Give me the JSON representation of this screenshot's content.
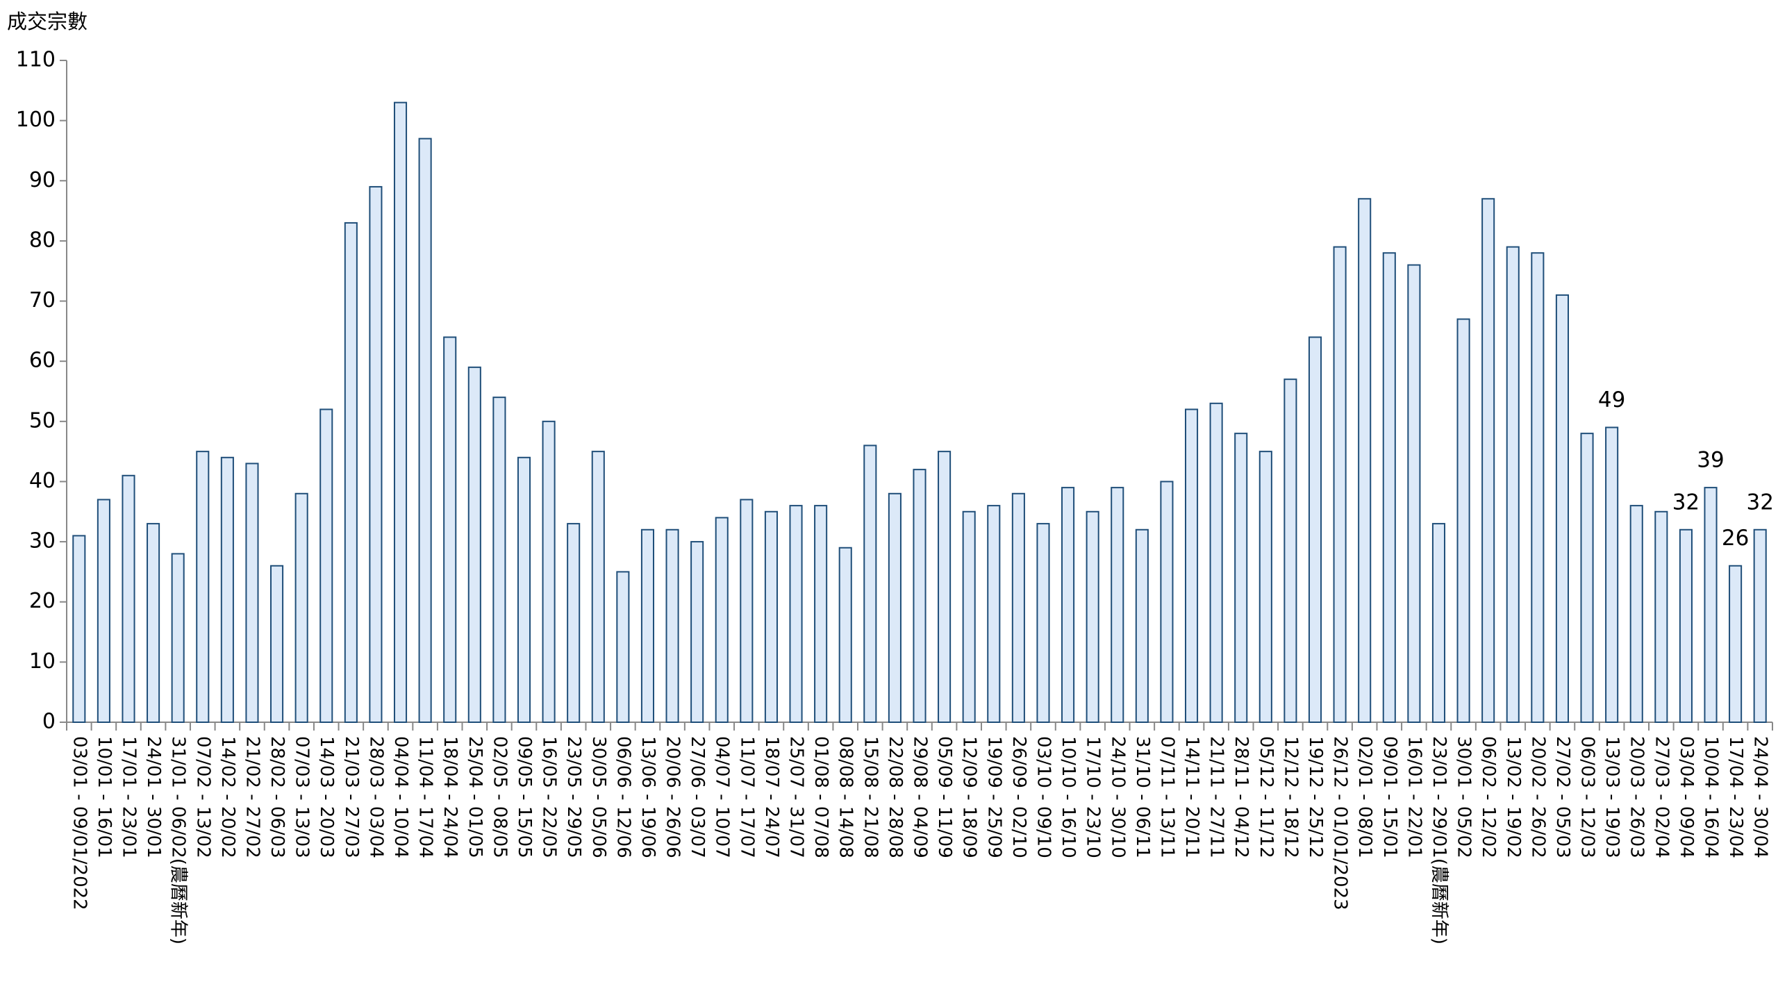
{
  "chart_data": {
    "type": "bar",
    "title": "成交宗數",
    "categories": [
      "03/01 - 09/01/2022",
      "10/01 - 16/01",
      "17/01 - 23/01",
      "24/01 - 30/01",
      "31/01 - 06/02(農曆新年)",
      "07/02 - 13/02",
      "14/02 - 20/02",
      "21/02 - 27/02",
      "28/02 - 06/03",
      "07/03 - 13/03",
      "14/03 - 20/03",
      "21/03 - 27/03",
      "28/03 - 03/04",
      "04/04 - 10/04",
      "11/04 - 17/04",
      "18/04 - 24/04",
      "25/04 - 01/05",
      "02/05 - 08/05",
      "09/05 - 15/05",
      "16/05 - 22/05",
      "23/05 - 29/05",
      "30/05 - 05/06",
      "06/06 - 12/06",
      "13/06 - 19/06",
      "20/06 - 26/06",
      "27/06 - 03/07",
      "04/07 - 10/07",
      "11/07 - 17/07",
      "18/07 - 24/07",
      "25/07 - 31/07",
      "01/08 - 07/08",
      "08/08 - 14/08",
      "15/08 - 21/08",
      "22/08 - 28/08",
      "29/08 - 04/09",
      "05/09 - 11/09",
      "12/09 - 18/09",
      "19/09 - 25/09",
      "26/09 - 02/10",
      "03/10 - 09/10",
      "10/10 - 16/10",
      "17/10 - 23/10",
      "24/10 - 30/10",
      "31/10 - 06/11",
      "07/11 - 13/11",
      "14/11 - 20/11",
      "21/11 - 27/11",
      "28/11 - 04/12",
      "05/12 - 11/12",
      "12/12 - 18/12",
      "19/12 - 25/12",
      "26/12 - 01/01/2023",
      "02/01 - 08/01",
      "09/01 - 15/01",
      "16/01 - 22/01",
      "23/01 - 29/01(農曆新年)",
      "30/01 - 05/02",
      "06/02 - 12/02",
      "13/02 - 19/02",
      "20/02 - 26/02",
      "27/02 - 05/03",
      "06/03 - 12/03",
      "13/03 - 19/03",
      "20/03 - 26/03",
      "27/03 - 02/04",
      "03/04 - 09/04",
      "10/04 - 16/04",
      "17/04 - 23/04",
      "24/04 - 30/04"
    ],
    "values": [
      31,
      37,
      41,
      33,
      28,
      45,
      44,
      43,
      26,
      38,
      52,
      83,
      89,
      103,
      97,
      64,
      59,
      54,
      44,
      50,
      33,
      45,
      25,
      32,
      32,
      30,
      34,
      37,
      35,
      36,
      36,
      29,
      46,
      38,
      42,
      45,
      35,
      36,
      38,
      33,
      39,
      35,
      39,
      32,
      40,
      52,
      53,
      48,
      45,
      57,
      64,
      79,
      87,
      78,
      76,
      33,
      67,
      87,
      79,
      78,
      71,
      48,
      49,
      36,
      35,
      32,
      39,
      26,
      32
    ],
    "value_labels": [
      null,
      null,
      null,
      null,
      null,
      null,
      null,
      null,
      null,
      null,
      null,
      null,
      null,
      null,
      null,
      null,
      null,
      null,
      null,
      null,
      null,
      null,
      null,
      null,
      null,
      null,
      null,
      null,
      null,
      null,
      null,
      null,
      null,
      null,
      null,
      null,
      null,
      null,
      null,
      null,
      null,
      null,
      null,
      null,
      null,
      null,
      null,
      null,
      null,
      null,
      null,
      null,
      null,
      null,
      null,
      null,
      null,
      null,
      null,
      null,
      null,
      null,
      "49",
      null,
      null,
      "32",
      "39",
      "26",
      "32"
    ],
    "color": "#dce9f8",
    "edge_color": "#1f4e79",
    "ylim": [
      0,
      110
    ],
    "yticks": [
      0,
      10,
      20,
      30,
      40,
      50,
      60,
      70,
      80,
      90,
      100,
      110
    ],
    "grid": false
  }
}
